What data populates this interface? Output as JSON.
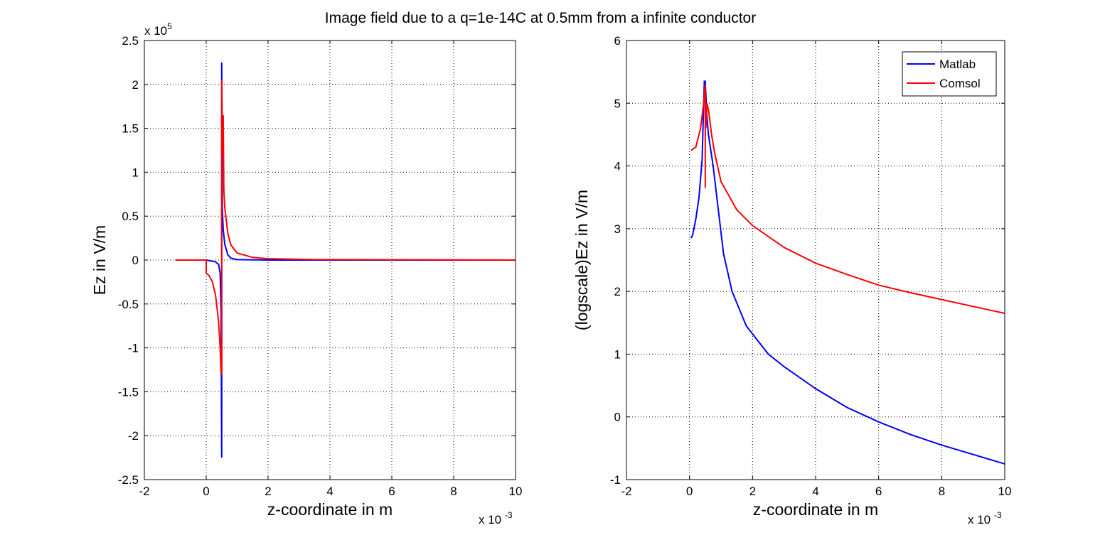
{
  "title": "Image field due to a q=1e-14C at 0.5mm from a infinite conductor",
  "colors": {
    "matlab": "#0000ff",
    "comsol": "#ff0000",
    "grid": "#000000"
  },
  "chart_data": [
    {
      "type": "line",
      "xlabel": "z-coordinate in m",
      "ylabel": "Ez in V/m",
      "x_exponent": "x 10",
      "x_exponent_power": "-3",
      "y_exponent": "x 10",
      "y_exponent_power": "5",
      "xlim": [
        -2,
        10
      ],
      "ylim": [
        -2.5,
        2.5
      ],
      "xticks": [
        -2,
        0,
        2,
        4,
        6,
        8,
        10
      ],
      "yticks": [
        -2.5,
        -2,
        -1.5,
        -1,
        -0.5,
        0,
        0.5,
        1,
        1.5,
        2,
        2.5
      ],
      "grid": true,
      "series": [
        {
          "color": "#0000ff",
          "x": [
            0,
            0.3,
            0.4,
            0.45,
            0.48,
            0.5,
            0.5,
            0.52,
            0.55,
            0.6,
            0.7,
            0.8,
            1.0,
            2,
            10
          ],
          "y": [
            0,
            -0.02,
            -0.05,
            -0.15,
            -0.6,
            -2.25,
            2.25,
            0.6,
            0.35,
            0.18,
            0.06,
            0.02,
            0.005,
            0,
            0
          ]
        },
        {
          "color": "#ff0000",
          "x": [
            -1,
            0,
            0,
            0.1,
            0.2,
            0.3,
            0.4,
            0.45,
            0.48,
            0.5,
            0.5,
            0.53,
            0.55,
            0.57,
            0.6,
            0.7,
            0.8,
            1.0,
            1.5,
            2,
            3.5,
            10
          ],
          "y": [
            0,
            0,
            -0.15,
            -0.18,
            -0.25,
            -0.4,
            -0.7,
            -1.0,
            -1.3,
            -1.3,
            2.05,
            1.2,
            1.65,
            0.8,
            0.6,
            0.3,
            0.17,
            0.08,
            0.03,
            0.015,
            0.005,
            0
          ]
        }
      ]
    },
    {
      "type": "line",
      "xlabel": "z-coordinate in m",
      "ylabel": "(logscale)Ez in V/m",
      "x_exponent": "x 10",
      "x_exponent_power": "-3",
      "xlim": [
        -2,
        10
      ],
      "ylim": [
        -1,
        6
      ],
      "xticks": [
        -2,
        0,
        2,
        4,
        6,
        8,
        10
      ],
      "yticks": [
        -1,
        0,
        1,
        2,
        3,
        4,
        5,
        6
      ],
      "grid": true,
      "legend": "top-right",
      "series": [
        {
          "name": "Matlab",
          "color": "#0000ff",
          "x": [
            0.05,
            0.1,
            0.2,
            0.3,
            0.4,
            0.47,
            0.5,
            0.55,
            0.6,
            0.75,
            1.08,
            1.35,
            1.8,
            2.5,
            3,
            4,
            5,
            6,
            7,
            8,
            9,
            10
          ],
          "y": [
            2.85,
            2.9,
            3.15,
            3.5,
            4.1,
            5.35,
            5.35,
            4.8,
            4.5,
            4.0,
            2.6,
            2.0,
            1.45,
            1.0,
            0.8,
            0.45,
            0.15,
            -0.08,
            -0.28,
            -0.45,
            -0.6,
            -0.75
          ]
        },
        {
          "name": "Comsol",
          "color": "#ff0000",
          "x": [
            0.05,
            0.2,
            0.35,
            0.45,
            0.5,
            0.5,
            0.5,
            0.52,
            0.55,
            0.6,
            0.7,
            0.8,
            1.0,
            1.5,
            2,
            3,
            4,
            5,
            6,
            7,
            8,
            9,
            10
          ],
          "y": [
            4.25,
            4.3,
            4.6,
            5.0,
            5.3,
            3.65,
            5.25,
            4.6,
            5.0,
            4.9,
            4.5,
            4.2,
            3.75,
            3.3,
            3.05,
            2.7,
            2.45,
            2.27,
            2.1,
            1.98,
            1.87,
            1.76,
            1.65
          ]
        }
      ]
    }
  ]
}
